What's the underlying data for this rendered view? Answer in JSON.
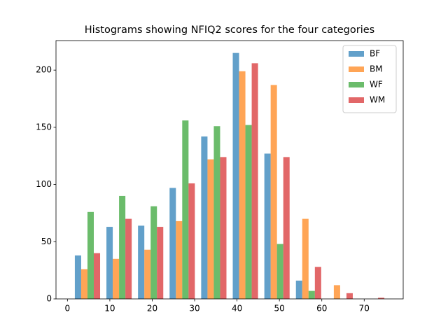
{
  "chart_data": {
    "type": "histogram",
    "title": "Histograms showing NFIQ2 scores for the four categories",
    "bins": [
      1,
      8.45,
      15.9,
      23.35,
      30.8,
      38.25,
      45.7,
      53.15,
      60.6,
      68.05,
      75.5
    ],
    "series": [
      {
        "name": "BF",
        "color": "#1f77b4",
        "values": [
          38,
          63,
          64,
          97,
          142,
          215,
          127,
          16,
          0,
          0
        ]
      },
      {
        "name": "BM",
        "color": "#ff7f0e",
        "values": [
          26,
          35,
          43,
          68,
          122,
          199,
          187,
          70,
          12,
          0
        ]
      },
      {
        "name": "WF",
        "color": "#2ca02c",
        "values": [
          76,
          90,
          81,
          156,
          151,
          152,
          48,
          7,
          0,
          0
        ]
      },
      {
        "name": "WM",
        "color": "#d62728",
        "values": [
          40,
          70,
          63,
          101,
          124,
          206,
          124,
          28,
          5,
          1
        ]
      }
    ],
    "alpha": 0.7,
    "xlim": [
      -2.7,
      79.2
    ],
    "xticks": [
      0,
      10,
      20,
      30,
      40,
      50,
      60,
      70
    ],
    "ylim": [
      0,
      225.8
    ],
    "yticks": [
      0,
      50,
      100,
      150,
      200
    ],
    "legend": "upper right",
    "grid": false
  }
}
